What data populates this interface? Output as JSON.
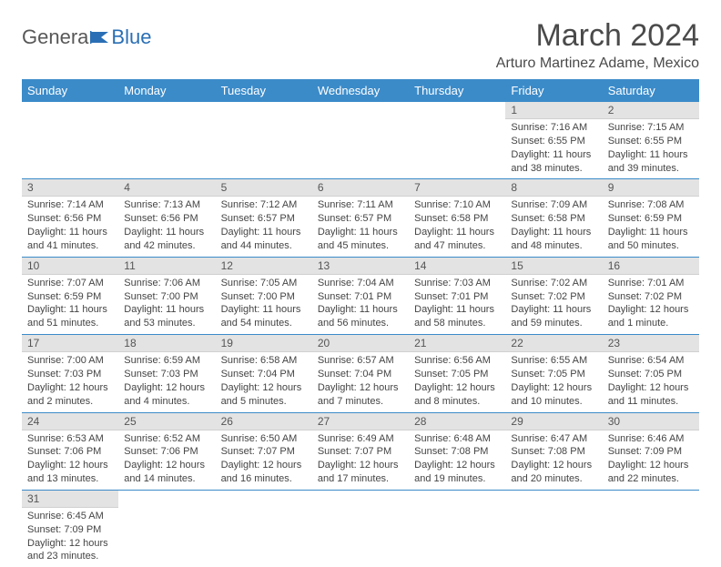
{
  "logo": {
    "text1": "Genera",
    "text2": "Blue"
  },
  "title": "March 2024",
  "location": "Arturo Martinez Adame, Mexico",
  "colors": {
    "header_bg": "#3b8bc9",
    "header_text": "#ffffff",
    "daynum_bg": "#e3e3e3",
    "row_border": "#3b8bc9",
    "title_color": "#4a4a4a",
    "logo_gray": "#585858",
    "logo_blue": "#2a6fb5"
  },
  "weekdays": [
    "Sunday",
    "Monday",
    "Tuesday",
    "Wednesday",
    "Thursday",
    "Friday",
    "Saturday"
  ],
  "weeks": [
    [
      null,
      null,
      null,
      null,
      null,
      {
        "n": "1",
        "sr": "Sunrise: 7:16 AM",
        "ss": "Sunset: 6:55 PM",
        "dl": "Daylight: 11 hours and 38 minutes."
      },
      {
        "n": "2",
        "sr": "Sunrise: 7:15 AM",
        "ss": "Sunset: 6:55 PM",
        "dl": "Daylight: 11 hours and 39 minutes."
      }
    ],
    [
      {
        "n": "3",
        "sr": "Sunrise: 7:14 AM",
        "ss": "Sunset: 6:56 PM",
        "dl": "Daylight: 11 hours and 41 minutes."
      },
      {
        "n": "4",
        "sr": "Sunrise: 7:13 AM",
        "ss": "Sunset: 6:56 PM",
        "dl": "Daylight: 11 hours and 42 minutes."
      },
      {
        "n": "5",
        "sr": "Sunrise: 7:12 AM",
        "ss": "Sunset: 6:57 PM",
        "dl": "Daylight: 11 hours and 44 minutes."
      },
      {
        "n": "6",
        "sr": "Sunrise: 7:11 AM",
        "ss": "Sunset: 6:57 PM",
        "dl": "Daylight: 11 hours and 45 minutes."
      },
      {
        "n": "7",
        "sr": "Sunrise: 7:10 AM",
        "ss": "Sunset: 6:58 PM",
        "dl": "Daylight: 11 hours and 47 minutes."
      },
      {
        "n": "8",
        "sr": "Sunrise: 7:09 AM",
        "ss": "Sunset: 6:58 PM",
        "dl": "Daylight: 11 hours and 48 minutes."
      },
      {
        "n": "9",
        "sr": "Sunrise: 7:08 AM",
        "ss": "Sunset: 6:59 PM",
        "dl": "Daylight: 11 hours and 50 minutes."
      }
    ],
    [
      {
        "n": "10",
        "sr": "Sunrise: 7:07 AM",
        "ss": "Sunset: 6:59 PM",
        "dl": "Daylight: 11 hours and 51 minutes."
      },
      {
        "n": "11",
        "sr": "Sunrise: 7:06 AM",
        "ss": "Sunset: 7:00 PM",
        "dl": "Daylight: 11 hours and 53 minutes."
      },
      {
        "n": "12",
        "sr": "Sunrise: 7:05 AM",
        "ss": "Sunset: 7:00 PM",
        "dl": "Daylight: 11 hours and 54 minutes."
      },
      {
        "n": "13",
        "sr": "Sunrise: 7:04 AM",
        "ss": "Sunset: 7:01 PM",
        "dl": "Daylight: 11 hours and 56 minutes."
      },
      {
        "n": "14",
        "sr": "Sunrise: 7:03 AM",
        "ss": "Sunset: 7:01 PM",
        "dl": "Daylight: 11 hours and 58 minutes."
      },
      {
        "n": "15",
        "sr": "Sunrise: 7:02 AM",
        "ss": "Sunset: 7:02 PM",
        "dl": "Daylight: 11 hours and 59 minutes."
      },
      {
        "n": "16",
        "sr": "Sunrise: 7:01 AM",
        "ss": "Sunset: 7:02 PM",
        "dl": "Daylight: 12 hours and 1 minute."
      }
    ],
    [
      {
        "n": "17",
        "sr": "Sunrise: 7:00 AM",
        "ss": "Sunset: 7:03 PM",
        "dl": "Daylight: 12 hours and 2 minutes."
      },
      {
        "n": "18",
        "sr": "Sunrise: 6:59 AM",
        "ss": "Sunset: 7:03 PM",
        "dl": "Daylight: 12 hours and 4 minutes."
      },
      {
        "n": "19",
        "sr": "Sunrise: 6:58 AM",
        "ss": "Sunset: 7:04 PM",
        "dl": "Daylight: 12 hours and 5 minutes."
      },
      {
        "n": "20",
        "sr": "Sunrise: 6:57 AM",
        "ss": "Sunset: 7:04 PM",
        "dl": "Daylight: 12 hours and 7 minutes."
      },
      {
        "n": "21",
        "sr": "Sunrise: 6:56 AM",
        "ss": "Sunset: 7:05 PM",
        "dl": "Daylight: 12 hours and 8 minutes."
      },
      {
        "n": "22",
        "sr": "Sunrise: 6:55 AM",
        "ss": "Sunset: 7:05 PM",
        "dl": "Daylight: 12 hours and 10 minutes."
      },
      {
        "n": "23",
        "sr": "Sunrise: 6:54 AM",
        "ss": "Sunset: 7:05 PM",
        "dl": "Daylight: 12 hours and 11 minutes."
      }
    ],
    [
      {
        "n": "24",
        "sr": "Sunrise: 6:53 AM",
        "ss": "Sunset: 7:06 PM",
        "dl": "Daylight: 12 hours and 13 minutes."
      },
      {
        "n": "25",
        "sr": "Sunrise: 6:52 AM",
        "ss": "Sunset: 7:06 PM",
        "dl": "Daylight: 12 hours and 14 minutes."
      },
      {
        "n": "26",
        "sr": "Sunrise: 6:50 AM",
        "ss": "Sunset: 7:07 PM",
        "dl": "Daylight: 12 hours and 16 minutes."
      },
      {
        "n": "27",
        "sr": "Sunrise: 6:49 AM",
        "ss": "Sunset: 7:07 PM",
        "dl": "Daylight: 12 hours and 17 minutes."
      },
      {
        "n": "28",
        "sr": "Sunrise: 6:48 AM",
        "ss": "Sunset: 7:08 PM",
        "dl": "Daylight: 12 hours and 19 minutes."
      },
      {
        "n": "29",
        "sr": "Sunrise: 6:47 AM",
        "ss": "Sunset: 7:08 PM",
        "dl": "Daylight: 12 hours and 20 minutes."
      },
      {
        "n": "30",
        "sr": "Sunrise: 6:46 AM",
        "ss": "Sunset: 7:09 PM",
        "dl": "Daylight: 12 hours and 22 minutes."
      }
    ],
    [
      {
        "n": "31",
        "sr": "Sunrise: 6:45 AM",
        "ss": "Sunset: 7:09 PM",
        "dl": "Daylight: 12 hours and 23 minutes."
      },
      null,
      null,
      null,
      null,
      null,
      null
    ]
  ]
}
